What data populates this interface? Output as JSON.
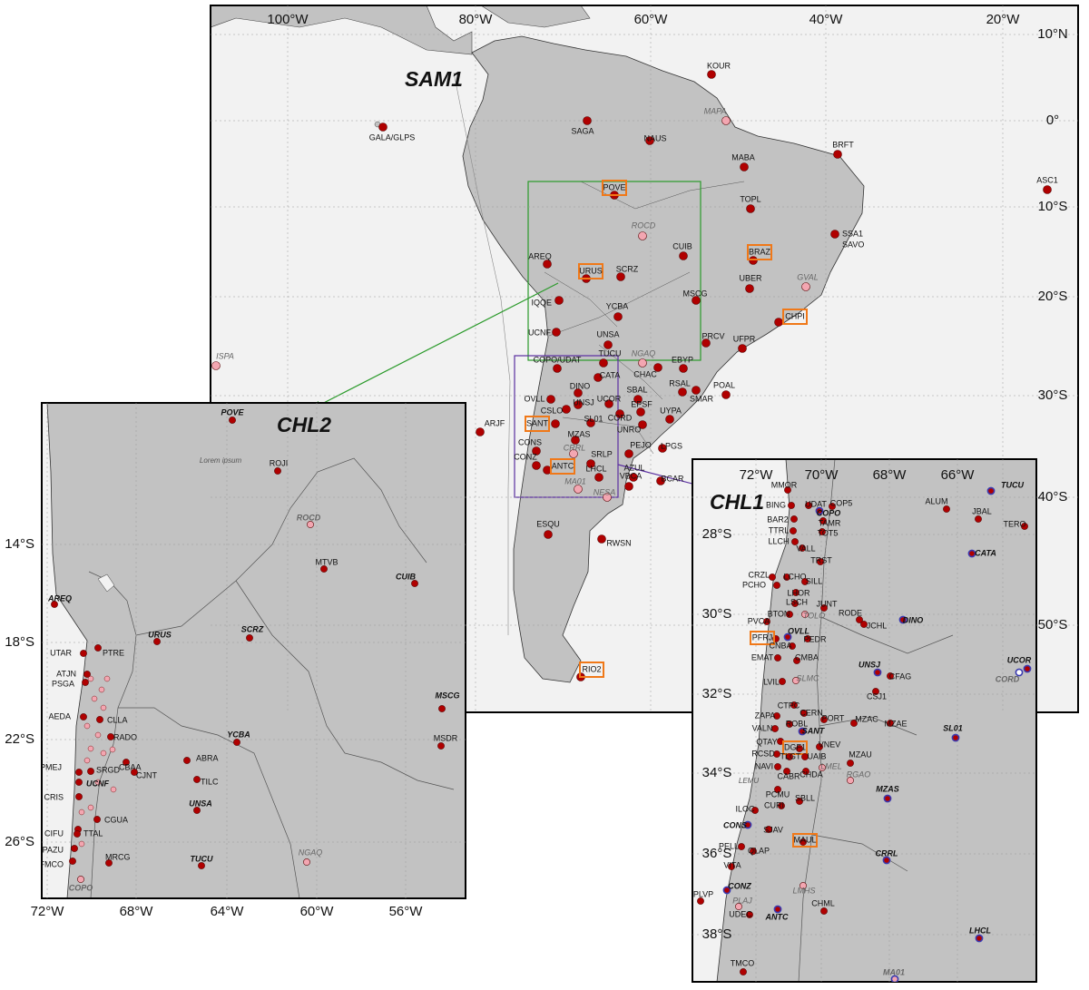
{
  "sam1": {
    "title": "SAM1",
    "marker_color": "#b00000",
    "lon_labels": [
      "100°W",
      "80°W",
      "60°W",
      "40°W",
      "20°W"
    ],
    "lat_labels": [
      "10°N",
      "0°",
      "10°S",
      "20°S",
      "30°S",
      "40°S",
      "50°S"
    ],
    "stations": [
      {
        "label": "GALA/GLPS"
      },
      {
        "label": "KOUR"
      },
      {
        "label": "MAPA",
        "color": "#f3a6b1"
      },
      {
        "label": "SAGA"
      },
      {
        "label": "NAUS"
      },
      {
        "label": "BRFT"
      },
      {
        "label": "MABA"
      },
      {
        "label": "ASC1"
      },
      {
        "label": "POVE",
        "boxed": true
      },
      {
        "label": "TOPL"
      },
      {
        "label": "ROCD",
        "color": "#f3a6b1"
      },
      {
        "label": "SSA1"
      },
      {
        "label": "CUIB"
      },
      {
        "label": "BRAZ",
        "boxed": true
      },
      {
        "label": "AREQ"
      },
      {
        "label": "URUS",
        "boxed": true
      },
      {
        "label": "SCRZ"
      },
      {
        "label": "UBER"
      },
      {
        "label": "GVAL",
        "color": "#f3a6b1"
      },
      {
        "label": "IQQE"
      },
      {
        "label": "MSCG"
      },
      {
        "label": "CHPI",
        "boxed": true
      },
      {
        "label": "YCBA"
      },
      {
        "label": "UCNF"
      },
      {
        "label": "PRCV"
      },
      {
        "label": "UNSA"
      },
      {
        "label": "UFPR"
      },
      {
        "label": "ISPA",
        "color": "#f3a6b1"
      },
      {
        "label": "COPO/UDAT"
      },
      {
        "label": "TUCU"
      },
      {
        "label": "NGAQ",
        "color": "#f3a6b1"
      },
      {
        "label": "EBYP"
      },
      {
        "label": "CHAC"
      },
      {
        "label": "CATA"
      },
      {
        "label": "POAL"
      },
      {
        "label": "RSAL"
      },
      {
        "label": "DINO"
      },
      {
        "label": "SBAL"
      },
      {
        "label": "SMAR"
      },
      {
        "label": "UCOR"
      },
      {
        "label": "OVLL"
      },
      {
        "label": "UNSJ"
      },
      {
        "label": "EPSF"
      },
      {
        "label": "UYPA"
      },
      {
        "label": "CSLO"
      },
      {
        "label": "CORD"
      },
      {
        "label": "SANT",
        "boxed": true
      },
      {
        "label": "SL01"
      },
      {
        "label": "UNRO"
      },
      {
        "label": "ARJF"
      },
      {
        "label": "MZAS"
      },
      {
        "label": "CONS"
      },
      {
        "label": "PEJO"
      },
      {
        "label": "LPGS"
      },
      {
        "label": "CRRL",
        "color": "#f3a6b1"
      },
      {
        "label": "SRLP"
      },
      {
        "label": "CONZ"
      },
      {
        "label": "ANTC",
        "boxed": true
      },
      {
        "label": "LHCL"
      },
      {
        "label": "AZUL"
      },
      {
        "label": "VBCA"
      },
      {
        "label": "BCAR"
      },
      {
        "label": "MA01",
        "color": "#f3a6b1"
      },
      {
        "label": "NESA",
        "color": "#f3a6b1"
      },
      {
        "label": "ESQU"
      },
      {
        "label": "RWSN"
      },
      {
        "label": "RIO2",
        "boxed": true
      }
    ],
    "extra_labels": [
      "SAVO"
    ]
  },
  "chl2": {
    "title": "CHL2",
    "marker_color": "#b00000",
    "lon_labels": [
      "72°W",
      "68°W",
      "64°W",
      "60°W",
      "56°W"
    ],
    "lat_labels": [
      "14°S",
      "18°S",
      "22°S",
      "26°S"
    ],
    "stations": [
      {
        "label": "POVE",
        "bold": true
      },
      {
        "label": "ROJI"
      },
      {
        "label": "ROCD",
        "bold": true,
        "color": "#f3a6b1"
      },
      {
        "label": "MTVB"
      },
      {
        "label": "CUIB",
        "bold": true
      },
      {
        "label": "AREQ",
        "bold": true
      },
      {
        "label": "URUS",
        "bold": true
      },
      {
        "label": "SCRZ",
        "bold": true
      },
      {
        "label": "UTAR"
      },
      {
        "label": "PTRE"
      },
      {
        "label": "ATJN"
      },
      {
        "label": "PSGA"
      },
      {
        "label": "MSCG",
        "bold": true
      },
      {
        "label": "AEDA"
      },
      {
        "label": "CLLA"
      },
      {
        "label": "RADO"
      },
      {
        "label": "MSDR"
      },
      {
        "label": "YCBA",
        "bold": true
      },
      {
        "label": "ABRA"
      },
      {
        "label": "PMEJ"
      },
      {
        "label": "SRGD"
      },
      {
        "label": "CBAA"
      },
      {
        "label": "CJNT"
      },
      {
        "label": "UCNF",
        "bold": true
      },
      {
        "label": "TILC"
      },
      {
        "label": "CRIS"
      },
      {
        "label": "UNSA",
        "bold": true
      },
      {
        "label": "CGUA"
      },
      {
        "label": "CIFU"
      },
      {
        "label": "TTAL"
      },
      {
        "label": "MRCG"
      },
      {
        "label": "PAZU"
      },
      {
        "label": "FMCO"
      },
      {
        "label": "TUCU",
        "bold": true
      },
      {
        "label": "NGAQ",
        "color": "#f3a6b1"
      },
      {
        "label": "COPO",
        "bold": true,
        "color": "#f3a6b1"
      }
    ],
    "extra_labels": [
      "Lorem ipsum"
    ]
  },
  "chl1": {
    "title": "CHL1",
    "marker_color": "#b00000",
    "ring_color": "#3a3ab0",
    "lon_labels": [
      "72°W",
      "70°W",
      "68°W",
      "66°W"
    ],
    "lat_labels": [
      "28°S",
      "30°S",
      "32°S",
      "34°S",
      "36°S",
      "38°S"
    ],
    "stations": [
      {
        "label": "TUCU",
        "ring": true
      },
      {
        "label": "MMOR"
      },
      {
        "label": "BING"
      },
      {
        "label": "UDAT"
      },
      {
        "label": "COP5"
      },
      {
        "label": "COPO",
        "ring": true
      },
      {
        "label": "ALUM"
      },
      {
        "label": "JBAL"
      },
      {
        "label": "TERO"
      },
      {
        "label": "BAR2"
      },
      {
        "label": "TAMR"
      },
      {
        "label": "TOT5"
      },
      {
        "label": "TTRL"
      },
      {
        "label": "LLCH"
      },
      {
        "label": "CATA",
        "ring": true
      },
      {
        "label": "VALL"
      },
      {
        "label": "TRST"
      },
      {
        "label": "CRZL"
      },
      {
        "label": "LCHO"
      },
      {
        "label": "SILL"
      },
      {
        "label": "PCHO"
      },
      {
        "label": "LHOR"
      },
      {
        "label": "LSCH"
      },
      {
        "label": "JUNT"
      },
      {
        "label": "BTON"
      },
      {
        "label": "TOLO",
        "color": "#f3a6b1"
      },
      {
        "label": "RODE"
      },
      {
        "label": "JCHL"
      },
      {
        "label": "DINO",
        "ring": true
      },
      {
        "label": "PVCA"
      },
      {
        "label": "OVLL",
        "ring": true
      },
      {
        "label": "PFRJ",
        "boxed": true
      },
      {
        "label": "PEDR"
      },
      {
        "label": "CNBA"
      },
      {
        "label": "EMAT"
      },
      {
        "label": "CMBA"
      },
      {
        "label": "UNSJ",
        "ring": true
      },
      {
        "label": "CFAG"
      },
      {
        "label": "UCOR",
        "ring": true
      },
      {
        "label": "CORD",
        "ring": true,
        "color": "#ffffff"
      },
      {
        "label": "LVIL"
      },
      {
        "label": "SLMC",
        "color": "#f3a6b1"
      },
      {
        "label": "CSJ1"
      },
      {
        "label": "CTPC"
      },
      {
        "label": "CERN"
      },
      {
        "label": "PORT"
      },
      {
        "label": "ZAPA"
      },
      {
        "label": "ROBL"
      },
      {
        "label": "MZAC"
      },
      {
        "label": "MZAE"
      },
      {
        "label": "VALN"
      },
      {
        "label": "SANT",
        "ring": true
      },
      {
        "label": "SL01",
        "ring": true
      },
      {
        "label": "QTAY"
      },
      {
        "label": "DGF1",
        "boxed": true
      },
      {
        "label": "VNEV"
      },
      {
        "label": "RCSD"
      },
      {
        "label": "TLGT"
      },
      {
        "label": "UAIB"
      },
      {
        "label": "MZAU"
      },
      {
        "label": "LMEL",
        "color": "#f3a6b1"
      },
      {
        "label": "NAVI"
      },
      {
        "label": "CHDA"
      },
      {
        "label": "CABR"
      },
      {
        "label": "RGAO",
        "color": "#f3a6b1"
      },
      {
        "label": "MZAS",
        "ring": true
      },
      {
        "label": "PCMU"
      },
      {
        "label": "SBLL"
      },
      {
        "label": "CURI"
      },
      {
        "label": "ILOC"
      },
      {
        "label": "CONS",
        "ring": true
      },
      {
        "label": "SJAV"
      },
      {
        "label": "MAUL",
        "boxed": true
      },
      {
        "label": "PELL"
      },
      {
        "label": "QLAP"
      },
      {
        "label": "CRRL",
        "ring": true
      },
      {
        "label": "VITA"
      },
      {
        "label": "CONZ",
        "ring": true
      },
      {
        "label": "PLVP"
      },
      {
        "label": "LMHS",
        "color": "#f3a6b1"
      },
      {
        "label": "PLAJ",
        "color": "#f3a6b1"
      },
      {
        "label": "UDEC"
      },
      {
        "label": "ANTC",
        "ring": true
      },
      {
        "label": "CHML"
      },
      {
        "label": "LHCL",
        "ring": true
      },
      {
        "label": "TMCO"
      },
      {
        "label": "MA01",
        "ring": true,
        "color": "#f3a6b1"
      }
    ],
    "extra_labels": [
      "LEMU"
    ]
  }
}
